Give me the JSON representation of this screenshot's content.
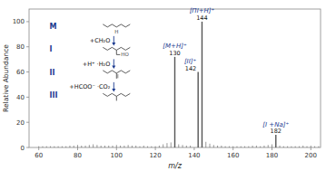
{
  "chart_data": {
    "type": "stem",
    "xlabel": "m/z",
    "ylabel": "Relative Abundance",
    "xlim": [
      55,
      205
    ],
    "ylim": [
      0,
      110
    ],
    "xticks": [
      60,
      80,
      100,
      120,
      140,
      160,
      180,
      200
    ],
    "yticks": [
      0,
      20,
      40,
      60,
      80,
      100
    ],
    "series": [
      {
        "x": [
          60,
          62,
          64,
          66,
          68,
          70,
          72,
          74,
          76,
          78,
          80,
          82,
          84,
          86,
          88,
          90,
          92,
          94,
          96,
          98,
          100,
          102,
          104,
          106,
          108,
          110,
          112,
          114,
          116,
          118,
          120,
          122,
          124,
          126,
          128,
          132,
          134,
          136,
          138,
          146,
          148,
          150,
          152,
          154,
          156,
          158,
          160,
          162,
          164,
          166,
          168,
          170,
          172,
          174,
          176,
          178,
          180,
          184,
          186,
          188,
          190,
          192,
          194,
          196,
          198,
          200,
          202,
          204
        ],
        "values": [
          1.0,
          1.0,
          1.0,
          1.0,
          1.0,
          1.0,
          1.0,
          1.0,
          1.5,
          1.5,
          2.0,
          1.5,
          1.5,
          2.0,
          2.5,
          2.0,
          1.5,
          1.5,
          1.5,
          1.5,
          2.0,
          1.5,
          1.5,
          2.0,
          1.5,
          1.5,
          1.0,
          1.5,
          1.0,
          1.0,
          1.0,
          1.5,
          2.5,
          3.5,
          4.0,
          2.5,
          2.0,
          1.5,
          1.5,
          4.5,
          3.0,
          2.0,
          1.5,
          1.5,
          1.0,
          1.0,
          1.0,
          1.0,
          1.0,
          1.0,
          1.0,
          1.5,
          1.5,
          1.0,
          1.5,
          2.0,
          2.5,
          1.5,
          1.0,
          1.0,
          1.0,
          1.0,
          1.0,
          1.5,
          1.0,
          1.5,
          1.0,
          1.0
        ],
        "color": "#555555"
      },
      {
        "x": [
          130,
          142,
          144,
          182
        ],
        "values": [
          72,
          60,
          100,
          10
        ],
        "color": "#555555"
      }
    ],
    "annotations": [
      {
        "text": "[M+H]⁺",
        "x": 130
      },
      {
        "text": "[II]⁺",
        "x": 142
      },
      {
        "text": "[ΠI+H]⁺",
        "x": 144
      },
      {
        "text": "[I +Na]⁺",
        "x": 182
      },
      {
        "text": [
          "M",
          "H"
        ]
      },
      {
        "text": [
          "+CH₂O"
        ]
      },
      {
        "text": [
          "I",
          "HO"
        ]
      },
      {
        "text": [
          "+H⁺",
          "·H₂O"
        ]
      },
      {
        "text": [
          "II"
        ]
      },
      {
        "text": [
          "+HCOO⁻",
          "·CO₂"
        ]
      },
      {
        "text": [
          "III"
        ]
      }
    ]
  }
}
